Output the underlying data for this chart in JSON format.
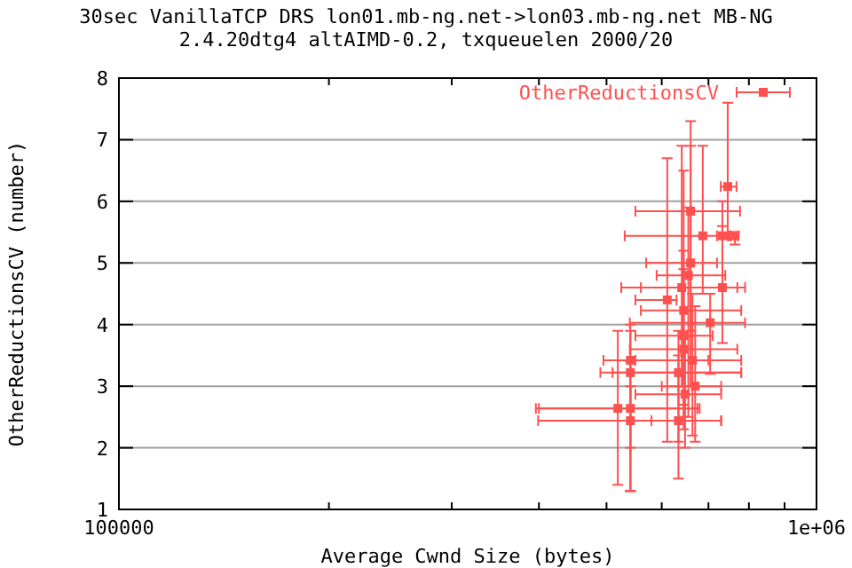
{
  "chart_data": {
    "type": "scatter",
    "title": "30sec VanillaTCP DRS lon01.mb-ng.net->lon03.mb-ng.net MB-NG",
    "subtitle": "2.4.20dtg4 altAIMD-0.2, txqueuelen 2000/20",
    "xlabel": "Average Cwnd Size (bytes)",
    "ylabel": "OtherReductionsCV (number)",
    "log": "x",
    "grid": "y",
    "legend": "top right",
    "marker": "square",
    "xlim": [
      100000,
      1000000
    ],
    "xticks": [
      100000,
      {
        "value": 200000,
        "label": null
      },
      {
        "value": 300000,
        "label": null
      },
      {
        "value": 400000,
        "label": null
      },
      {
        "value": 500000,
        "label": null
      },
      {
        "value": 600000,
        "label": null
      },
      {
        "value": 700000,
        "label": null
      },
      {
        "value": 800000,
        "label": null
      },
      {
        "value": 900000,
        "label": null
      },
      {
        "value": 1000000,
        "label": "1e+06"
      }
    ],
    "ylim": [
      1,
      8
    ],
    "yticks": [
      1,
      2,
      3,
      4,
      5,
      6,
      7,
      8
    ],
    "series": [
      {
        "name": "OtherReductionsCV",
        "color": "#ff5050",
        "x": [
          746000,
          660000,
          687000,
          764000,
          733000,
          611000,
          733000,
          641000,
          704000,
          541000,
          634000,
          541000,
          519000,
          541000,
          541000,
          634000,
          648000,
          645000,
          664000,
          645000,
          645000,
          660000,
          655000,
          670000
        ],
        "values": [
          6.24,
          5.84,
          5.44,
          5.44,
          5.44,
          4.4,
          4.6,
          4.6,
          4.03,
          3.42,
          3.22,
          3.22,
          2.64,
          2.64,
          2.44,
          2.44,
          2.87,
          3.6,
          3.42,
          3.82,
          4.23,
          5.0,
          4.8,
          3.0
        ],
        "xerrors": [
          [
            729000,
            768000
          ],
          [
            550000,
            777000
          ],
          [
            531000,
            746000
          ],
          [
            754000,
            772000
          ],
          [
            720000,
            750000
          ],
          [
            550000,
            630000
          ],
          [
            560000,
            790000
          ],
          [
            525000,
            770000
          ],
          [
            540000,
            790000
          ],
          [
            495000,
            700000
          ],
          [
            510000,
            780000
          ],
          [
            490000,
            780000
          ],
          [
            396000,
            675000
          ],
          [
            400000,
            680000
          ],
          [
            399000,
            730000
          ],
          [
            580000,
            730000
          ],
          [
            550000,
            730000
          ],
          [
            540000,
            770000
          ],
          [
            550000,
            780000
          ],
          [
            550000,
            710000
          ],
          [
            560000,
            780000
          ],
          [
            570000,
            720000
          ],
          [
            590000,
            740000
          ],
          [
            600000,
            730000
          ]
        ],
        "errors": [
          [
            5.4,
            7.6
          ],
          [
            3.9,
            7.3
          ],
          [
            4.5,
            6.9
          ],
          [
            5.3,
            5.5
          ],
          [
            4.6,
            6.0
          ],
          [
            2.1,
            6.7
          ],
          [
            3.7,
            5.6
          ],
          [
            3.0,
            6.9
          ],
          [
            3.2,
            4.5
          ],
          [
            2.0,
            4.0
          ],
          [
            2.1,
            3.9
          ],
          [
            1.3,
            3.9
          ],
          [
            1.4,
            3.9
          ],
          [
            1.3,
            3.4
          ],
          [
            1.3,
            3.0
          ],
          [
            1.5,
            3.5
          ],
          [
            2.0,
            3.8
          ],
          [
            2.3,
            4.9
          ],
          [
            2.2,
            4.5
          ],
          [
            2.5,
            5.2
          ],
          [
            2.7,
            6.5
          ],
          [
            3.0,
            6.9
          ],
          [
            2.5,
            5.9
          ],
          [
            2.1,
            4.3
          ]
        ]
      }
    ]
  }
}
